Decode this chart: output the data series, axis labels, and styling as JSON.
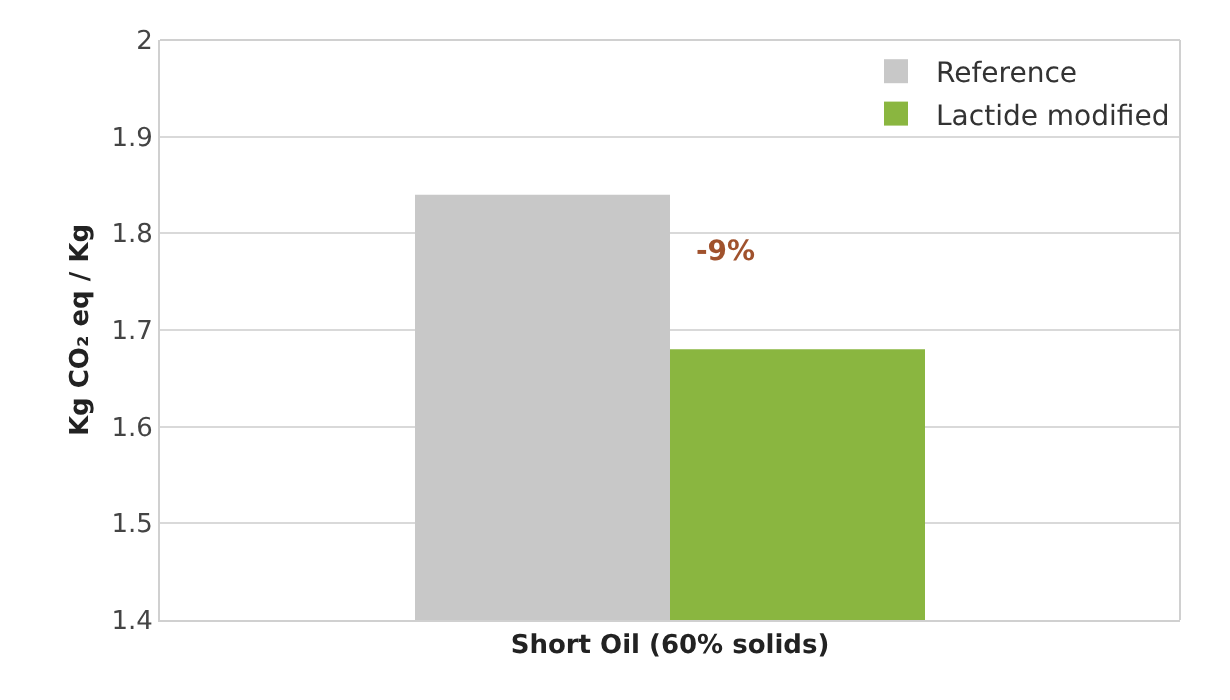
{
  "chart_data": {
    "type": "bar",
    "ylabel": "Kg CO₂ eq / Kg",
    "categories": [
      "Short Oil (60% solids)"
    ],
    "series": [
      {
        "name": "Reference",
        "color": "#c8c8c8",
        "values": [
          1.84
        ]
      },
      {
        "name": "Lactide modified",
        "color": "#8ab640",
        "values": [
          1.68
        ]
      }
    ],
    "ylim": [
      1.4,
      2
    ],
    "yticks": [
      1.4,
      1.5,
      1.6,
      1.7,
      1.8,
      1.9,
      2
    ],
    "grid": "y",
    "legend": "top right",
    "annotations": [
      {
        "text": "-9%",
        "x": "Short Oil (60% solids)",
        "y": 1.78
      }
    ]
  }
}
